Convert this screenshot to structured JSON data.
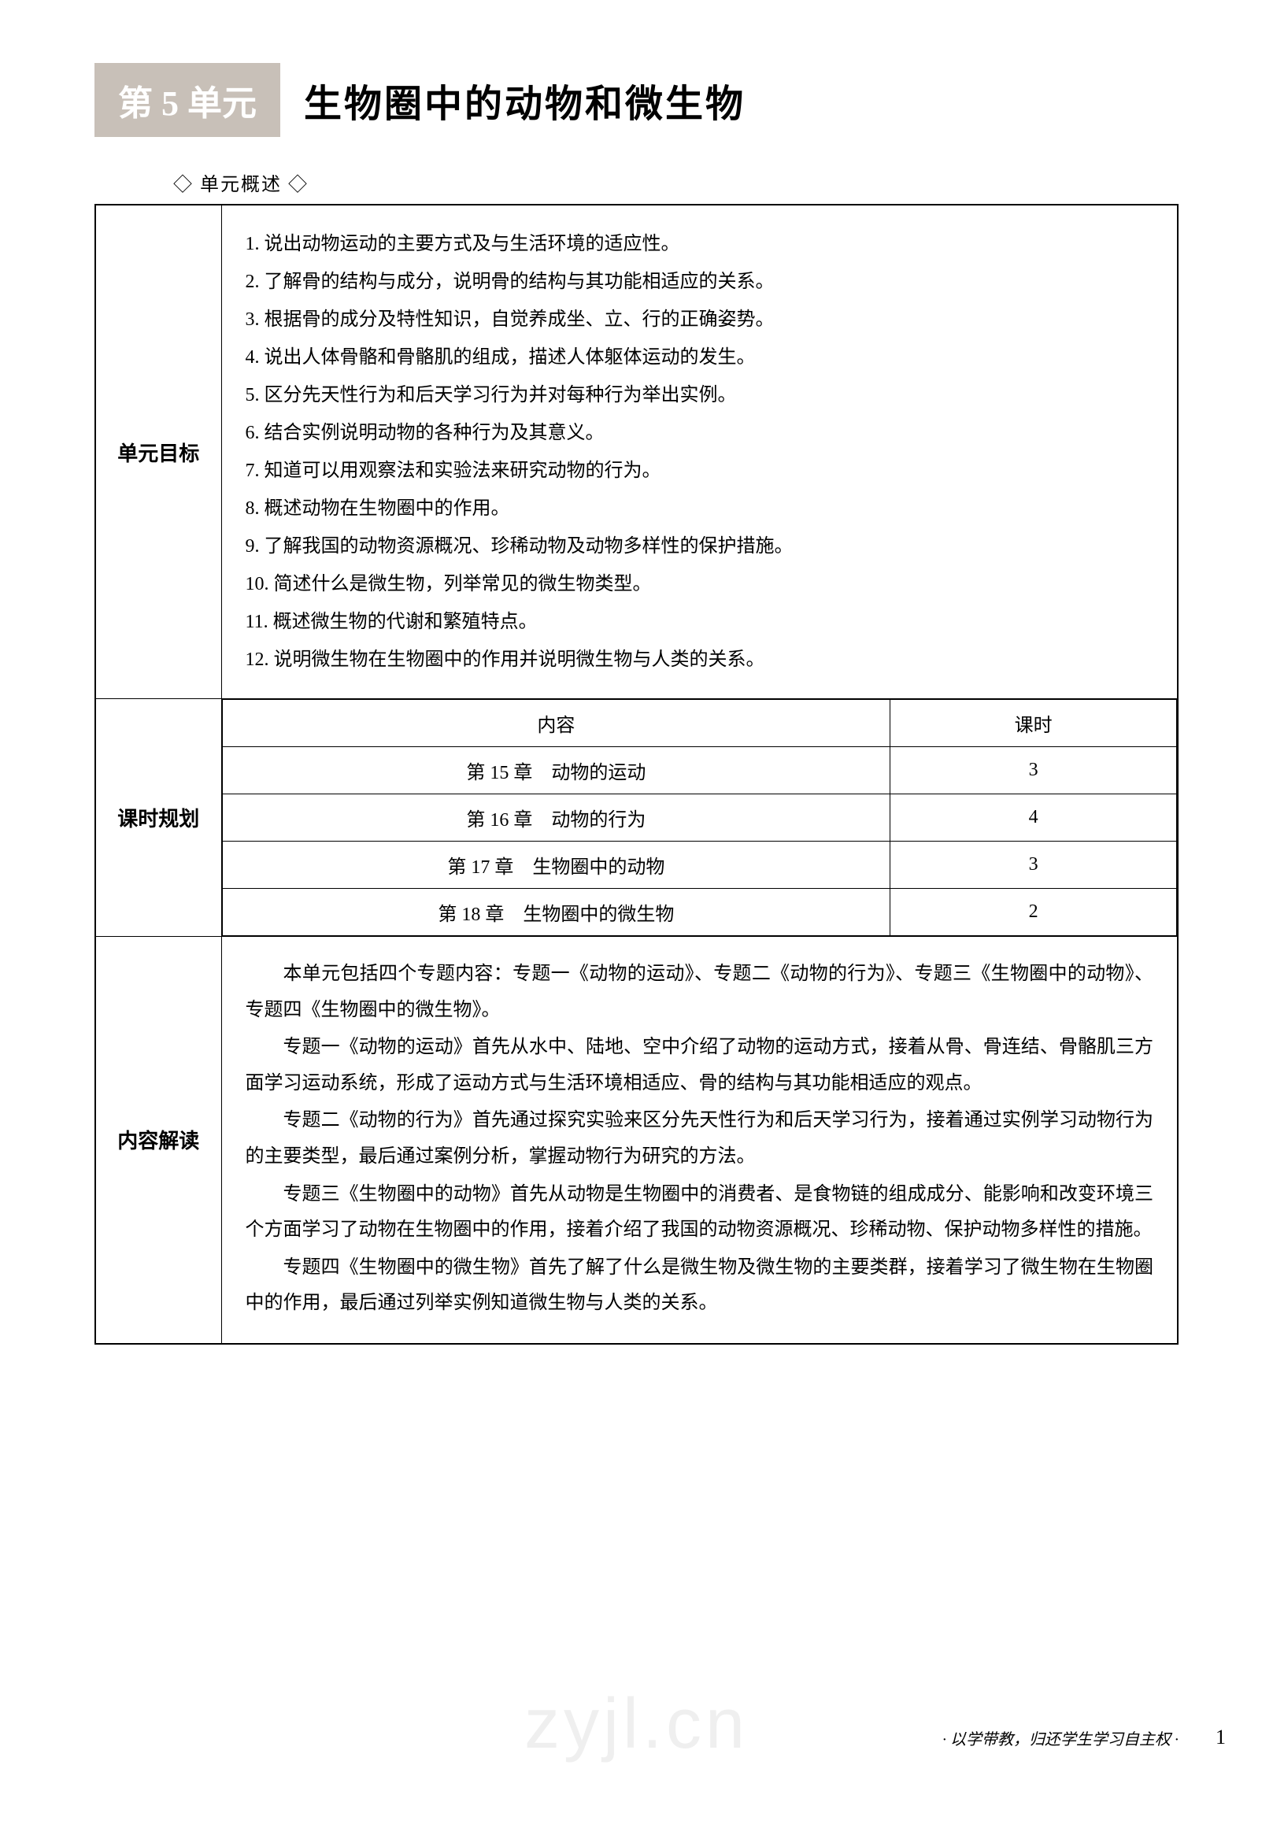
{
  "header": {
    "unit_badge": "第 5 单元",
    "unit_title": "生物圈中的动物和微生物"
  },
  "section_label": "◇ 单元概述 ◇",
  "rows": {
    "objectives_label": "单元目标",
    "schedule_label": "课时规划",
    "interpretation_label": "内容解读"
  },
  "objectives": [
    "1. 说出动物运动的主要方式及与生活环境的适应性。",
    "2. 了解骨的结构与成分，说明骨的结构与其功能相适应的关系。",
    "3. 根据骨的成分及特性知识，自觉养成坐、立、行的正确姿势。",
    "4. 说出人体骨骼和骨骼肌的组成，描述人体躯体运动的发生。",
    "5. 区分先天性行为和后天学习行为并对每种行为举出实例。",
    "6. 结合实例说明动物的各种行为及其意义。",
    "7. 知道可以用观察法和实验法来研究动物的行为。",
    "8. 概述动物在生物圈中的作用。",
    "9. 了解我国的动物资源概况、珍稀动物及动物多样性的保护措施。",
    "10. 简述什么是微生物，列举常见的微生物类型。",
    "11. 概述微生物的代谢和繁殖特点。",
    "12. 说明微生物在生物圈中的作用并说明微生物与人类的关系。"
  ],
  "schedule": {
    "headers": {
      "content": "内容",
      "hours": "课时"
    },
    "rows": [
      {
        "content": "第 15 章　动物的运动",
        "hours": "3"
      },
      {
        "content": "第 16 章　动物的行为",
        "hours": "4"
      },
      {
        "content": "第 17 章　生物圈中的动物",
        "hours": "3"
      },
      {
        "content": "第 18 章　生物圈中的微生物",
        "hours": "2"
      }
    ]
  },
  "interpretation": [
    "本单元包括四个专题内容：专题一《动物的运动》、专题二《动物的行为》、专题三《生物圈中的动物》、专题四《生物圈中的微生物》。",
    "专题一《动物的运动》首先从水中、陆地、空中介绍了动物的运动方式，接着从骨、骨连结、骨骼肌三方面学习运动系统，形成了运动方式与生活环境相适应、骨的结构与其功能相适应的观点。",
    "专题二《动物的行为》首先通过探究实验来区分先天性行为和后天学习行为，接着通过实例学习动物行为的主要类型，最后通过案例分析，掌握动物行为研究的方法。",
    "专题三《生物圈中的动物》首先从动物是生物圈中的消费者、是食物链的组成成分、能影响和改变环境三个方面学习了动物在生物圈中的作用，接着介绍了我国的动物资源概况、珍稀动物、保护动物多样性的措施。",
    "专题四《生物圈中的微生物》首先了解了什么是微生物及微生物的主要类群，接着学习了微生物在生物圈中的作用，最后通过列举实例知道微生物与人类的关系。"
  ],
  "watermark": "zyjl.cn",
  "footer": "· 以学带教，归还学生学习自主权 ·",
  "page_number": "1",
  "colors": {
    "badge_bg": "#c8c0b8",
    "badge_text": "#ffffff",
    "text": "#000000",
    "border": "#000000",
    "watermark": "#e0e0e0"
  }
}
